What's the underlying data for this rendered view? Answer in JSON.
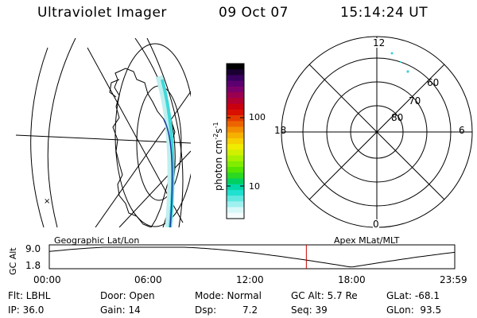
{
  "header": {
    "title": "Ultraviolet Imager",
    "date": "09 Oct 07",
    "time": "15:14:24 UT"
  },
  "left_map": {
    "caption": "Geographic Lat/Lon"
  },
  "colorbar": {
    "ticks": [
      "100",
      "10"
    ],
    "label_main": "photon cm",
    "label_exp1": "-2",
    "label_s": "s",
    "label_exp2": "-1",
    "colors": [
      "#000000",
      "#1a0030",
      "#3a0060",
      "#5c0070",
      "#7c006a",
      "#9a0050",
      "#b20030",
      "#c80010",
      "#d81000",
      "#e43c00",
      "#ec6400",
      "#f28c00",
      "#f6b000",
      "#f6d000",
      "#f0ec00",
      "#d0f000",
      "#a8f000",
      "#80ec00",
      "#54e400",
      "#2cd820",
      "#00d060",
      "#00d8a8",
      "#20e0d0",
      "#60e8e0",
      "#a0f0f0",
      "#d8f8f8",
      "#f4fcfc"
    ]
  },
  "polar": {
    "caption": "Apex MLat/MLT",
    "mlt_labels": {
      "top": "12",
      "left": "18",
      "right": "6",
      "bottom": "0"
    },
    "lat_labels": [
      "60",
      "70",
      "80"
    ]
  },
  "altitude": {
    "axis_title": "GC Alt",
    "ymax": "9.0",
    "ymin": "1.8",
    "xticks": [
      "00:00",
      "06:00",
      "12:00",
      "18:00",
      "23:59"
    ],
    "current_time_frac": 0.634,
    "line_color": "#cc0000"
  },
  "status": {
    "filter": "Flt: LBHL",
    "door": "Door: Open",
    "mode": "Mode: Normal",
    "gc_alt": "GC Alt: 5.7 Re",
    "glat": "GLat: -68.1",
    "ip": "IP: 36.0",
    "gain": "Gain: 14",
    "dsp_label": "Dsp:",
    "dsp_value": "7.2",
    "seq": "Seq: 39",
    "glon": "GLon:  93.5"
  }
}
